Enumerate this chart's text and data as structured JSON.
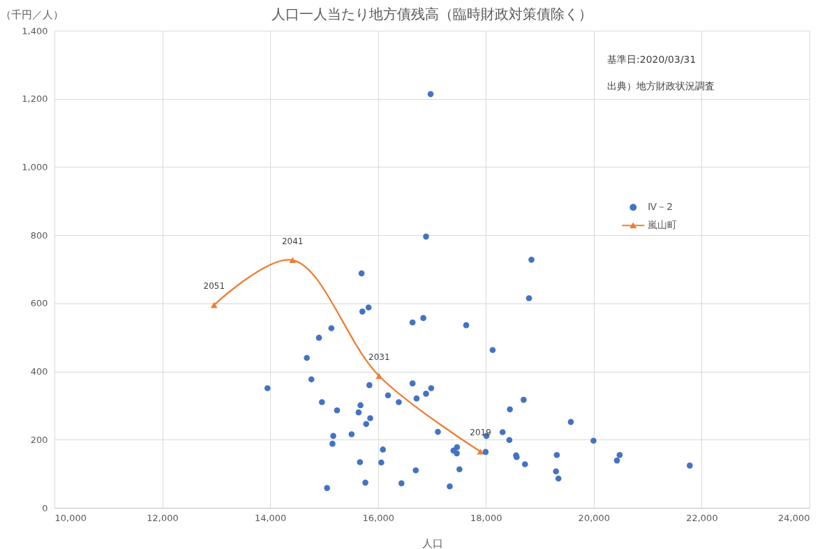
{
  "chart_data": {
    "type": "scatter",
    "title": "人口一人当たり地方債残高（臨時財政対策債除く）",
    "xlabel": "人口",
    "ylabel": "（千円／人）",
    "annotations": [
      "基準日:2020/03/31",
      "出典）地方財政状況調査",
      {
        "text": "2019",
        "x": 17900,
        "y": 165
      },
      {
        "text": "2031",
        "x": 16020,
        "y": 387
      },
      {
        "text": "2041",
        "x": 14415,
        "y": 727
      },
      {
        "text": "2051",
        "x": 12960,
        "y": 595
      }
    ],
    "xlim": [
      10000,
      24000
    ],
    "xticks": [
      {
        "value": 10000,
        "label": "10,000"
      },
      {
        "value": 12000,
        "label": "12,000"
      },
      {
        "value": 14000,
        "label": "14,000"
      },
      {
        "value": 16000,
        "label": "16,000"
      },
      {
        "value": 18000,
        "label": "18,000"
      },
      {
        "value": 20000,
        "label": "20,000"
      },
      {
        "value": 22000,
        "label": "22,000"
      },
      {
        "value": 24000,
        "label": "24,000"
      }
    ],
    "ylim": [
      0,
      1400
    ],
    "yticks": [
      0,
      200,
      400,
      600,
      800,
      {
        "value": 1000,
        "label": "1,000"
      },
      {
        "value": 1200,
        "label": "1,200"
      },
      {
        "value": 1400,
        "label": "1,400"
      }
    ],
    "grid": true,
    "legend": "right",
    "series": [
      {
        "name": "Ⅳ－2",
        "color": "#4472c4",
        "marker": "circle",
        "x": [
          13950,
          14680,
          14765,
          14905,
          14960,
          15055,
          15135,
          15170,
          15155,
          15240,
          15510,
          15640,
          15675,
          15665,
          15695,
          15710,
          15765,
          15780,
          15825,
          15840,
          15855,
          16060,
          16090,
          16185,
          16385,
          16435,
          16640,
          16640,
          16700,
          16715,
          16840,
          16890,
          16890,
          16975,
          16985,
          17110,
          17330,
          17400,
          17465,
          17460,
          17510,
          17635,
          17995,
          18010,
          18125,
          18310,
          18435,
          18445,
          18560,
          18570,
          18700,
          18725,
          18800,
          18845,
          19300,
          19315,
          19345,
          19575,
          19995,
          20430,
          20480,
          21780
        ],
        "values": [
          351,
          440,
          377,
          499,
          310,
          58,
          527,
          211,
          188,
          286,
          216,
          280,
          301,
          134,
          688,
          576,
          74,
          246,
          588,
          360,
          263,
          133,
          171,
          330,
          310,
          72,
          544,
          365,
          110,
          321,
          557,
          335,
          796,
          1214,
          351,
          223,
          63,
          168,
          178,
          160,
          113,
          536,
          164,
          211,
          463,
          222,
          199,
          289,
          154,
          149,
          317,
          128,
          615,
          728,
          107,
          155,
          86,
          252,
          197,
          139,
          155,
          124
        ]
      },
      {
        "name": "嵐山町",
        "type": "line",
        "color": "#ed7d31",
        "marker": "triangle",
        "line_style": "solid",
        "x": [
          17900,
          16020,
          14415,
          12960
        ],
        "values": [
          165,
          387,
          727,
          595
        ]
      }
    ]
  }
}
